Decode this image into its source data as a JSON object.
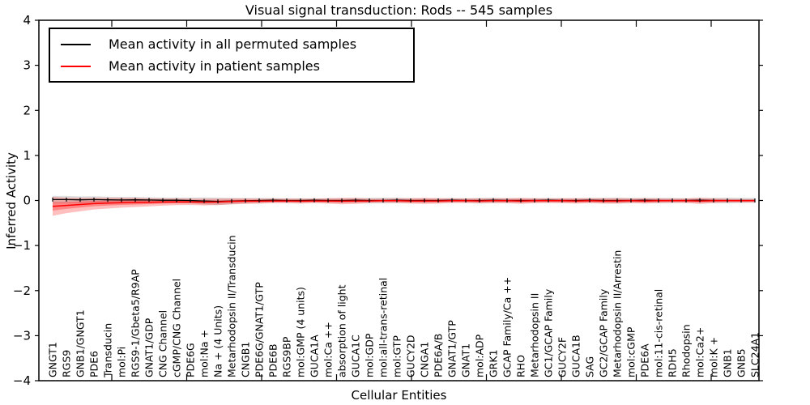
{
  "chart_data": {
    "type": "line",
    "title": "Visual signal transduction: Rods -- 545 samples",
    "xlabel": "Cellular Entities",
    "ylabel": "Inferred Activity",
    "ylim": [
      -4,
      4
    ],
    "ytick_values": [
      4,
      3,
      2,
      1,
      0,
      -1,
      -2,
      -3,
      -4
    ],
    "ytick_labels": [
      "4",
      "3",
      "2",
      "1",
      "0",
      "−1",
      "−2",
      "−3",
      "−4"
    ],
    "grid": false,
    "legend_position": "upper left",
    "categories": [
      "GNGT1",
      "RGS9",
      "GNB1/GNGT1",
      "PDE6",
      "Transducin",
      "mol:Pi",
      "RGS9-1/Gbeta5/R9AP",
      "GNAT1/GDP",
      "CNG Channel",
      "cGMP/CNG Channel",
      "PDE6G",
      "mol:Na +",
      "Na + (4 Units)",
      "Metarhodopsin II/Transducin",
      "CNGB1",
      "PDE6G/GNAT1/GTP",
      "PDE6B",
      "RGS9BP",
      "mol:GMP (4 units)",
      "GUCA1A",
      "mol:Ca ++",
      "absorption of light",
      "GUCA1C",
      "mol:GDP",
      "mol:all-trans-retinal",
      "mol:GTP",
      "GUCY2D",
      "CNGA1",
      "PDE6A/B",
      "GNAT1/GTP",
      "GNAT1",
      "mol:ADP",
      "GRK1",
      "GCAP Family/Ca ++",
      "RHO",
      "Metarhodopsin II",
      "GC1/GCAP Family",
      "GUCY2F",
      "GUCA1B",
      "SAG",
      "GC2/GCAP Family",
      "Metarhodopsin II/Arrestin",
      "mol:cGMP",
      "PDE6A",
      "mol:11-cis-retinal",
      "RDH5",
      "Rhodopsin",
      "mol:Ca2+",
      "mol:K +",
      "GNB1",
      "GNB5",
      "SLC24A1"
    ],
    "series": [
      {
        "name": "Mean activity in all permuted samples",
        "color": "#000000",
        "band_color": "#000000",
        "values": [
          0.02,
          0.02,
          0.015,
          0.02,
          0.015,
          0.01,
          0.015,
          0.01,
          0.005,
          0.005,
          0,
          -0.01,
          -0.02,
          -0.015,
          -0.005,
          0,
          0.005,
          0,
          0,
          0.005,
          0,
          0,
          0.005,
          0,
          0,
          0.005,
          0,
          0,
          0,
          0.005,
          0,
          0,
          0.005,
          0,
          0,
          0,
          0.005,
          0,
          0,
          0.005,
          0,
          0,
          0,
          0.005,
          0,
          0,
          0,
          0.005,
          0,
          0,
          0,
          0
        ],
        "band_halfwidth": [
          0.085,
          0.08,
          0.075,
          0.075,
          0.07,
          0.07,
          0.065,
          0.06,
          0.06,
          0.06,
          0.065,
          0.08,
          0.085,
          0.07,
          0.06,
          0.055,
          0.05,
          0.05,
          0.05,
          0.045,
          0.05,
          0.05,
          0.05,
          0.06,
          0.065,
          0.06,
          0.05,
          0.05,
          0.05,
          0.05,
          0.05,
          0.06,
          0.06,
          0.05,
          0.05,
          0.05,
          0.05,
          0.05,
          0.05,
          0.05,
          0.06,
          0.065,
          0.055,
          0.05,
          0.06,
          0.06,
          0.05,
          0.05,
          0.06,
          0.065,
          0.06,
          0.055
        ]
      },
      {
        "name": "Mean activity in patient samples",
        "color": "#ff0000",
        "band_color": "#ff0000",
        "values": [
          -0.13,
          -0.11,
          -0.09,
          -0.07,
          -0.06,
          -0.05,
          -0.045,
          -0.04,
          -0.035,
          -0.03,
          -0.03,
          -0.035,
          -0.03,
          -0.02,
          -0.015,
          -0.015,
          -0.01,
          -0.01,
          -0.015,
          -0.01,
          -0.01,
          -0.015,
          -0.01,
          -0.01,
          -0.005,
          -0.005,
          -0.01,
          -0.01,
          -0.01,
          -0.005,
          -0.005,
          -0.01,
          -0.005,
          -0.005,
          -0.01,
          -0.005,
          -0.005,
          -0.005,
          -0.01,
          -0.005,
          -0.01,
          -0.01,
          -0.005,
          -0.01,
          -0.005,
          -0.005,
          -0.005,
          -0.01,
          -0.005,
          -0.005,
          -0.005,
          -0.005
        ],
        "band_halfwidth": [
          0.21,
          0.17,
          0.15,
          0.13,
          0.12,
          0.11,
          0.1,
          0.09,
          0.08,
          0.075,
          0.07,
          0.075,
          0.07,
          0.065,
          0.06,
          0.055,
          0.05,
          0.05,
          0.055,
          0.05,
          0.06,
          0.07,
          0.065,
          0.05,
          0.045,
          0.05,
          0.06,
          0.065,
          0.06,
          0.05,
          0.05,
          0.055,
          0.05,
          0.055,
          0.065,
          0.055,
          0.05,
          0.055,
          0.06,
          0.055,
          0.06,
          0.06,
          0.05,
          0.06,
          0.05,
          0.045,
          0.05,
          0.07,
          0.05,
          0.04,
          0.04,
          0.035
        ]
      }
    ]
  }
}
